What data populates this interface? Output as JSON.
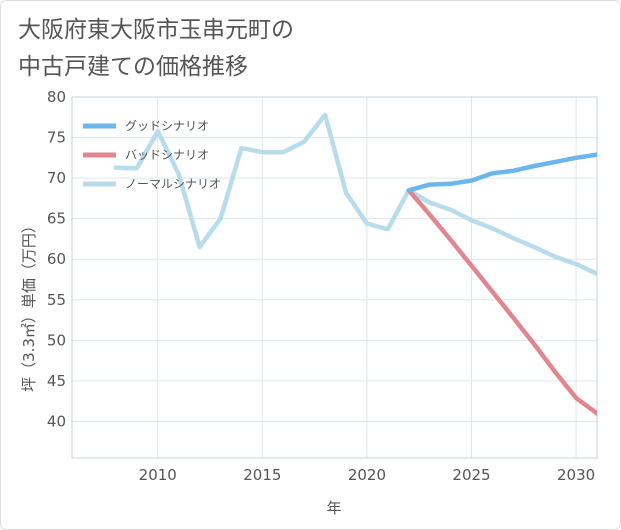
{
  "title_lines": [
    "大阪府東大阪市玉串元町の",
    "中古戸建ての価格推移"
  ],
  "chart_data": {
    "type": "line",
    "xlabel": "年",
    "ylabel": "坪（3.3㎡）単価（万円）",
    "xlim": [
      2005.9,
      2031
    ],
    "ylim": [
      35.5,
      80
    ],
    "xticks": [
      2010,
      2015,
      2020,
      2025,
      2030
    ],
    "yticks": [
      40,
      45,
      50,
      55,
      60,
      65,
      70,
      75,
      80
    ],
    "grid": true,
    "legend_position": "top-left",
    "series": [
      {
        "name": "グッドシナリオ",
        "color": "#6cb6ee",
        "x": [
          2022,
          2023,
          2024,
          2025,
          2026,
          2027,
          2028,
          2029,
          2030,
          2031
        ],
        "y": [
          68.5,
          69.2,
          69.3,
          69.7,
          70.6,
          70.9,
          71.5,
          72.0,
          72.5,
          72.9
        ]
      },
      {
        "name": "バッドシナリオ",
        "color": "#e0868f",
        "x": [
          2022,
          2023,
          2024,
          2025,
          2026,
          2027,
          2028,
          2029,
          2030,
          2031
        ],
        "y": [
          68.5,
          65.5,
          62.4,
          59.2,
          56.0,
          52.8,
          49.5,
          46.1,
          42.9,
          41.0
        ]
      },
      {
        "name": "ノーマルシナリオ",
        "color": "#b8dcec",
        "x": [
          2008,
          2009,
          2010,
          2011,
          2012,
          2013,
          2014,
          2015,
          2016,
          2017,
          2018,
          2019,
          2020,
          2021,
          2022,
          2023,
          2024,
          2025,
          2026,
          2027,
          2028,
          2029,
          2030,
          2031
        ],
        "y": [
          71.3,
          71.2,
          75.8,
          70.5,
          61.5,
          65.0,
          73.7,
          73.2,
          73.2,
          74.5,
          77.8,
          68.2,
          64.4,
          63.7,
          68.5,
          67.0,
          66.1,
          64.8,
          63.8,
          62.6,
          61.5,
          60.3,
          59.4,
          58.2
        ]
      }
    ]
  }
}
